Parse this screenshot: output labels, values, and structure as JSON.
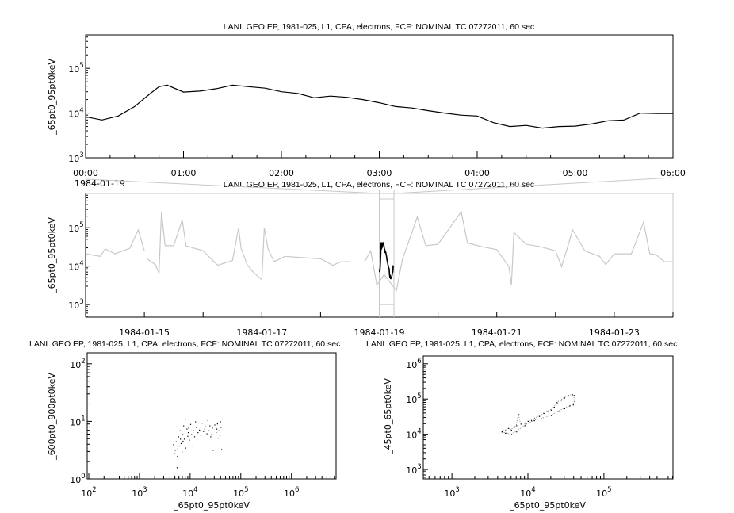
{
  "chart_data": [
    {
      "type": "line",
      "title": "LANL GEO EP, 1981-025, L1, CPA, electrons, FCF: NOMINAL TC 07272011, 60 sec",
      "xlabel": "",
      "ylabel": "_65pt0_95pt0keV",
      "date_label": "1984-01-19",
      "x_ticks": [
        "00:00",
        "01:00",
        "02:00",
        "03:00",
        "04:00",
        "05:00",
        "06:00"
      ],
      "xlim": [
        "00:00",
        "06:00"
      ],
      "ylim": [
        1000,
        560000
      ],
      "yscale": "log",
      "y_tick_exponents": [
        3,
        4,
        5
      ],
      "grid": false,
      "color": "#000000",
      "series": [
        {
          "x": [
            "00:00",
            "00:10",
            "00:20",
            "00:30",
            "00:40",
            "00:45",
            "00:50",
            "01:00",
            "01:10",
            "01:20",
            "01:30",
            "01:40",
            "01:50",
            "02:00",
            "02:10",
            "02:20",
            "02:30",
            "02:40",
            "02:50",
            "03:00",
            "03:10",
            "03:20",
            "03:30",
            "03:40",
            "03:50",
            "04:00",
            "04:10",
            "04:20",
            "04:30",
            "04:40",
            "04:50",
            "05:00",
            "05:10",
            "05:20",
            "05:30",
            "05:40",
            "05:50",
            "06:00"
          ],
          "values": [
            8300,
            7000,
            8600,
            14000,
            28000,
            39000,
            42000,
            29500,
            31000,
            35000,
            42000,
            39000,
            36000,
            30000,
            27500,
            22000,
            24000,
            22500,
            20000,
            17000,
            14000,
            13000,
            11300,
            10000,
            9000,
            8600,
            6100,
            5000,
            5300,
            4600,
            5000,
            5100,
            5700,
            6700,
            7000,
            10000,
            9800,
            9800
          ]
        }
      ]
    },
    {
      "type": "line",
      "title": "LANL GEO EP, 1981-025, L1, CPA, electrons, FCF: NOMINAL TC 07272011, 60 sec",
      "ylabel": "_65pt0_95pt0keV",
      "x_ticks": [
        "1984-01-15",
        "1984-01-17",
        "1984-01-19",
        "1984-01-21",
        "1984-01-23"
      ],
      "xlim": [
        "1984-01-14 00:00",
        "1984-01-24 00:00"
      ],
      "ylim": [
        470,
        780000
      ],
      "yscale": "log",
      "y_tick_exponents": [
        3,
        4,
        5
      ],
      "highlight_range": [
        "1984-01-19 00:00",
        "1984-01-19 06:00"
      ],
      "colors": {
        "context": "#c8c8c8",
        "highlight": "#000000"
      },
      "series": [
        {
          "x": [
            "1984-01-14 00:00",
            "1984-01-14 06:00",
            "1984-01-14 08:00",
            "1984-01-14 12:00",
            "1984-01-14 18:00",
            "1984-01-14 21:30",
            "1984-01-15 00:00",
            "null",
            "1984-01-15 01:00",
            "1984-01-15 04:30",
            "1984-01-15 06:00",
            "1984-01-15 07:00",
            "1984-01-15 08:30",
            "1984-01-15 12:00",
            "1984-01-15 15:30",
            "1984-01-15 17:00",
            "1984-01-16 00:00",
            "1984-01-16 06:00",
            "1984-01-16 12:00",
            "1984-01-16 14:30",
            "1984-01-16 15:30",
            "1984-01-16 18:00",
            "1984-01-16 20:30",
            "1984-01-17 00:00",
            "1984-01-17 01:00",
            "1984-01-17 02:30",
            "1984-01-17 05:00",
            "1984-01-17 09:30",
            "1984-01-17 14:30",
            "1984-01-18 00:00",
            "1984-01-18 05:00",
            "1984-01-18 08:30",
            "1984-01-18 12:00",
            "null",
            "1984-01-18 18:00",
            "1984-01-18 20:30",
            "1984-01-18 23:00",
            "1984-01-19 02:00",
            "1984-01-19 07:00",
            "1984-01-19 09:30",
            "1984-01-19 13:00",
            "1984-01-19 15:30",
            "1984-01-19 19:00",
            "1984-01-20 00:00",
            "1984-01-20 09:30",
            "1984-01-20 12:00",
            "1984-01-20 18:00",
            "1984-01-21 00:00",
            "1984-01-21 05:00",
            "1984-01-21 06:00",
            "1984-01-21 07:00",
            "1984-01-21 12:00",
            "1984-01-21 18:00",
            "1984-01-22 00:00",
            "1984-01-22 02:30",
            "1984-01-22 05:00",
            "1984-01-22 07:00",
            "1984-01-22 12:00",
            "1984-01-22 18:00",
            "1984-01-22 20:30",
            "1984-01-23 00:00",
            "1984-01-23 07:00",
            "1984-01-23 12:00",
            "1984-01-23 14:30",
            "1984-01-23 17:00",
            "1984-01-23 20:30",
            "1984-01-24 00:00"
          ],
          "values": [
            21000,
            18000,
            28000,
            21000,
            29000,
            88000,
            25000,
            null,
            15500,
            11000,
            6500,
            260000,
            34000,
            34000,
            160000,
            34000,
            25000,
            10500,
            14000,
            100000,
            29000,
            11000,
            7000,
            4400,
            100000,
            29000,
            13000,
            18000,
            17000,
            15500,
            10500,
            13000,
            13000,
            null,
            13000,
            25000,
            3200,
            6000,
            2300,
            15500,
            64000,
            190000,
            34000,
            37000,
            260000,
            40000,
            32000,
            27000,
            9700,
            3200,
            75000,
            37000,
            32000,
            25000,
            9700,
            32000,
            88000,
            25000,
            18000,
            11000,
            21000,
            21000,
            140000,
            21000,
            20000,
            13000,
            13000
          ]
        }
      ]
    },
    {
      "type": "scatter",
      "title": "LANL GEO EP, 1981-025, L1, CPA, electrons, FCF: NOMINAL TC 07272011, 60 sec",
      "xlabel": "_65pt0_95pt0keV",
      "ylabel": "_600pt0_900pt0keV",
      "xscale": "log",
      "yscale": "log",
      "xlim": [
        93,
        7600000
      ],
      "ylim": [
        1,
        155
      ],
      "x_tick_exponents": [
        2,
        3,
        4,
        5,
        6
      ],
      "y_tick_exponents": [
        0,
        1,
        2
      ],
      "points": [
        [
          5000,
          3.2
        ],
        [
          5200,
          4.5
        ],
        [
          5500,
          2.5
        ],
        [
          5800,
          5.5
        ],
        [
          6000,
          3.8
        ],
        [
          6200,
          7
        ],
        [
          6500,
          4.2
        ],
        [
          6800,
          3
        ],
        [
          7000,
          6
        ],
        [
          7300,
          8.5
        ],
        [
          7500,
          5
        ],
        [
          7800,
          11
        ],
        [
          8000,
          3.5
        ],
        [
          8500,
          7.5
        ],
        [
          9000,
          6.5
        ],
        [
          9500,
          4.8
        ],
        [
          10000,
          9
        ],
        [
          10500,
          6
        ],
        [
          11000,
          3.8
        ],
        [
          11500,
          7
        ],
        [
          12000,
          5.5
        ],
        [
          13000,
          8
        ],
        [
          14000,
          6.5
        ],
        [
          15000,
          7.2
        ],
        [
          16000,
          5.8
        ],
        [
          17000,
          9.5
        ],
        [
          18000,
          6.8
        ],
        [
          19000,
          7.5
        ],
        [
          20000,
          8.2
        ],
        [
          21000,
          6.2
        ],
        [
          22000,
          10.5
        ],
        [
          23000,
          7
        ],
        [
          24000,
          8.5
        ],
        [
          25000,
          5.5
        ],
        [
          27000,
          7.8
        ],
        [
          28000,
          3.2
        ],
        [
          30000,
          8.8
        ],
        [
          32000,
          6.5
        ],
        [
          34000,
          9.2
        ],
        [
          36000,
          7
        ],
        [
          38000,
          5.8
        ],
        [
          40000,
          8
        ],
        [
          41000,
          3.3
        ],
        [
          5400,
          1.6
        ],
        [
          4800,
          2.8
        ],
        [
          6300,
          5
        ],
        [
          8800,
          5.6
        ],
        [
          12500,
          10
        ],
        [
          33000,
          7.5
        ],
        [
          39000,
          10
        ],
        [
          4600,
          4
        ],
        [
          5600,
          3.4
        ],
        [
          7100,
          4.6
        ],
        [
          9200,
          7.8
        ],
        [
          26000,
          6
        ],
        [
          35000,
          5.2
        ]
      ]
    },
    {
      "type": "scatter",
      "title": "LANL GEO EP, 1981-025, L1, CPA, electrons, FCF: NOMINAL TC 07272011, 60 sec",
      "xlabel": "_65pt0_95pt0keV",
      "ylabel": "_45pt0_65pt0keV",
      "xscale": "log",
      "yscale": "log",
      "xlim": [
        420,
        810000
      ],
      "ylim": [
        540,
        1660000
      ],
      "x_tick_exponents": [
        3,
        4,
        5
      ],
      "y_tick_exponents": [
        3,
        4,
        5,
        6
      ],
      "points": [
        [
          4500,
          12000
        ],
        [
          5000,
          13000
        ],
        [
          5500,
          15000
        ],
        [
          6000,
          13500
        ],
        [
          6500,
          16000
        ],
        [
          7000,
          18000
        ],
        [
          7500,
          37000
        ],
        [
          8000,
          20000
        ],
        [
          9000,
          21000
        ],
        [
          10000,
          24000
        ],
        [
          11000,
          25000
        ],
        [
          12000,
          28000
        ],
        [
          14000,
          33000
        ],
        [
          16000,
          40000
        ],
        [
          18000,
          45000
        ],
        [
          20000,
          50000
        ],
        [
          22000,
          60000
        ],
        [
          24000,
          80000
        ],
        [
          27000,
          95000
        ],
        [
          30000,
          110000
        ],
        [
          34000,
          125000
        ],
        [
          38000,
          135000
        ],
        [
          40000,
          130000
        ],
        [
          41000,
          90000
        ],
        [
          39000,
          70000
        ],
        [
          35000,
          65000
        ],
        [
          30000,
          55000
        ],
        [
          25000,
          45000
        ],
        [
          20000,
          35000
        ],
        [
          15000,
          28000
        ],
        [
          12000,
          25000
        ],
        [
          9000,
          18000
        ],
        [
          7000,
          12000
        ],
        [
          6000,
          10000
        ],
        [
          5000,
          11000
        ],
        [
          4500,
          12000
        ]
      ]
    }
  ]
}
